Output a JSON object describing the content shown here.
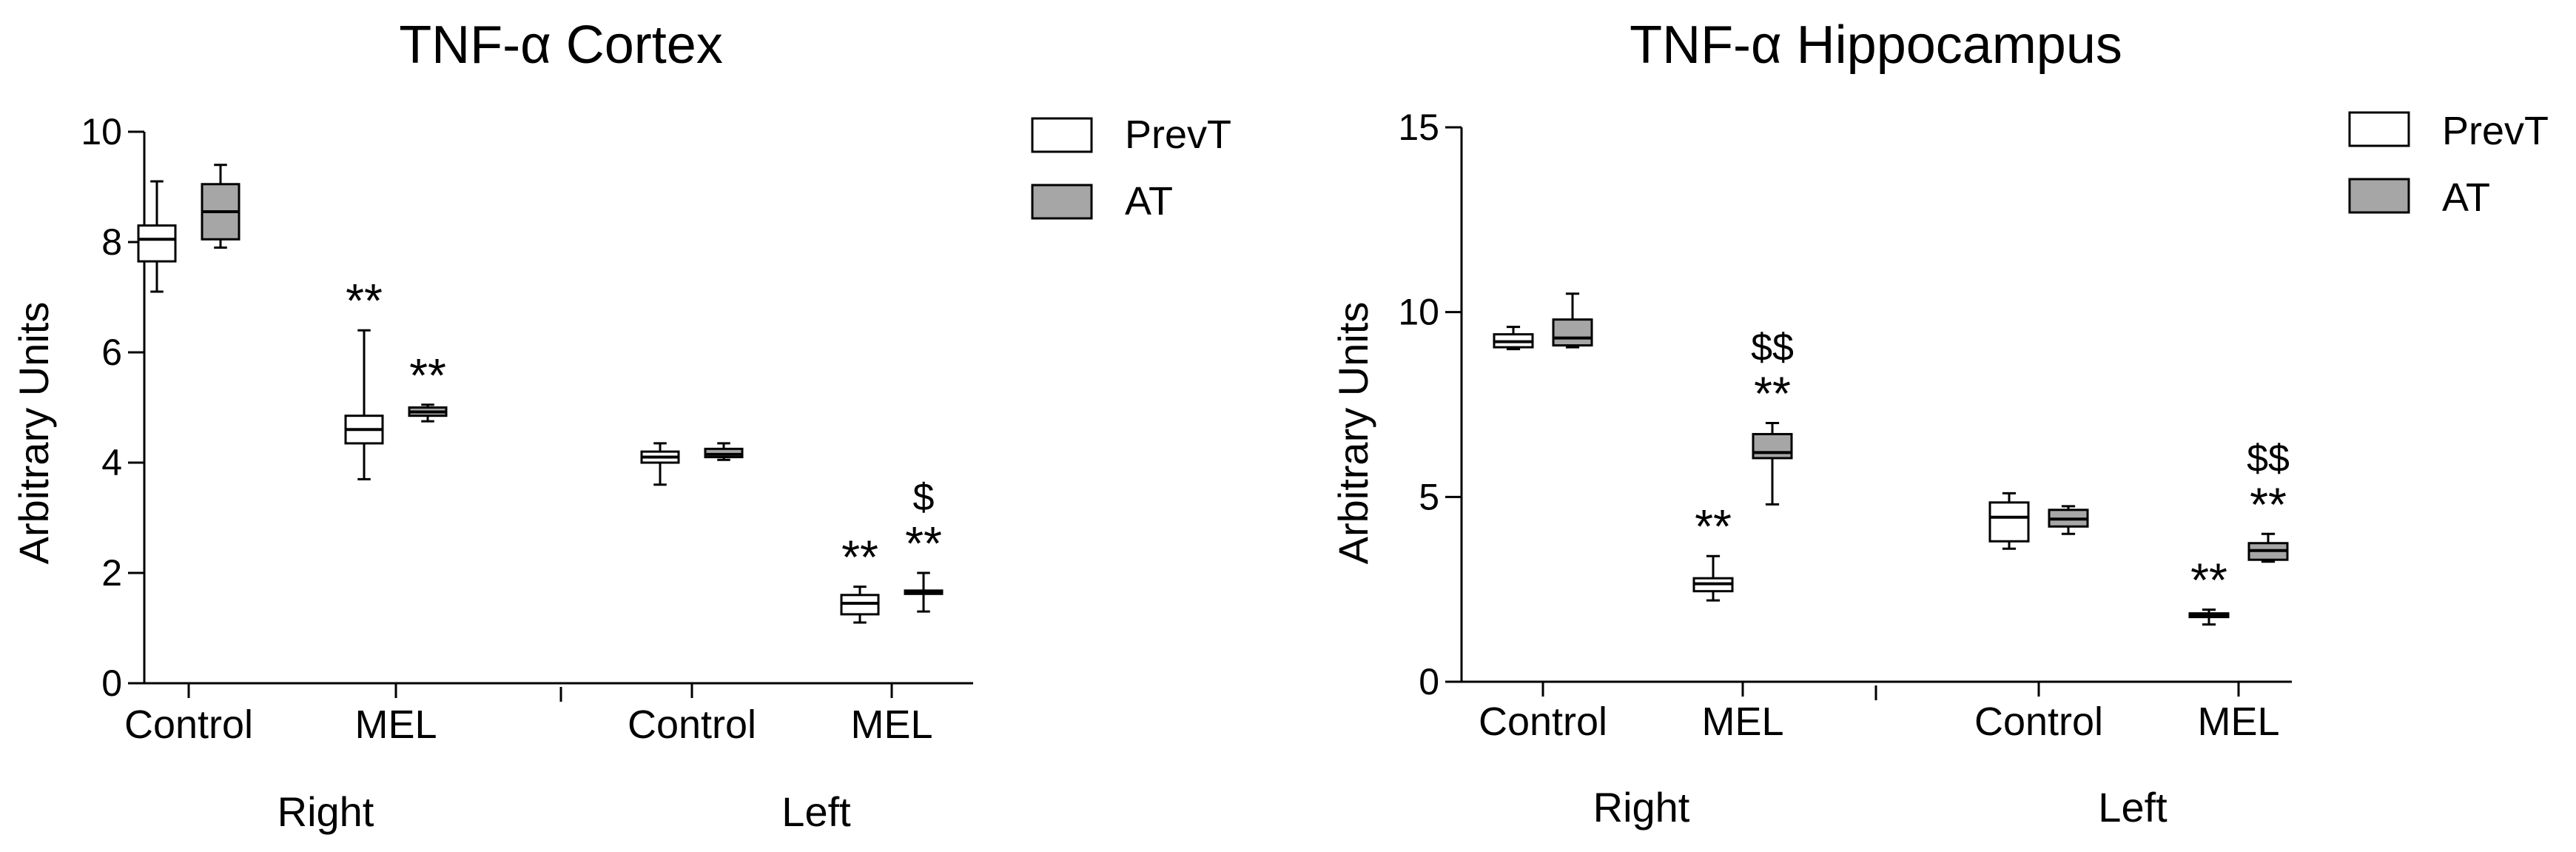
{
  "colors": {
    "PrevT": "#ffffff",
    "AT": "#a6a6a6",
    "stroke": "#000000"
  },
  "chart_data": [
    {
      "type": "boxplot",
      "title": "TNF-α Cortex",
      "ylabel": "Arbitrary Units",
      "ylim": [
        0,
        10
      ],
      "yticks": [
        0,
        2,
        4,
        6,
        8,
        10
      ],
      "yticklabels": [
        "0",
        "2",
        "4",
        "6",
        "8",
        "10"
      ],
      "groups": [
        "Right",
        "Left"
      ],
      "categories": [
        "Control",
        "MEL",
        "Control",
        "MEL"
      ],
      "legend": {
        "position": "top-right",
        "entries": [
          "PrevT",
          "AT"
        ]
      },
      "series": [
        {
          "name": "PrevT",
          "boxes": [
            {
              "min": 7.1,
              "q1": 7.65,
              "median": 8.05,
              "q3": 8.3,
              "max": 9.1,
              "label": ""
            },
            {
              "min": 3.7,
              "q1": 4.35,
              "median": 4.6,
              "q3": 4.85,
              "max": 6.4,
              "label": "**"
            },
            {
              "min": 3.6,
              "q1": 4.0,
              "median": 4.1,
              "q3": 4.2,
              "max": 4.35,
              "label": ""
            },
            {
              "min": 1.1,
              "q1": 1.25,
              "median": 1.45,
              "q3": 1.6,
              "max": 1.75,
              "label": "**"
            }
          ]
        },
        {
          "name": "AT",
          "boxes": [
            {
              "min": 7.9,
              "q1": 8.05,
              "median": 8.55,
              "q3": 9.05,
              "max": 9.4,
              "label": ""
            },
            {
              "min": 4.75,
              "q1": 4.85,
              "median": 4.92,
              "q3": 5.0,
              "max": 5.05,
              "label": "**"
            },
            {
              "min": 4.05,
              "q1": 4.1,
              "median": 4.15,
              "q3": 4.25,
              "max": 4.35,
              "label": ""
            },
            {
              "min": 1.3,
              "q1": 1.62,
              "median": 1.65,
              "q3": 1.68,
              "max": 2.0,
              "label": "**",
              "label2": "$"
            }
          ]
        }
      ]
    },
    {
      "type": "boxplot",
      "title": "TNF-α Hippocampus",
      "ylabel": "Arbitrary Units",
      "ylim": [
        0,
        15
      ],
      "yticks": [
        0,
        5,
        10,
        15
      ],
      "yticklabels": [
        "0",
        "5",
        "10",
        "15"
      ],
      "groups": [
        "Right",
        "Left"
      ],
      "categories": [
        "Control",
        "MEL",
        "Control",
        "MEL"
      ],
      "legend": {
        "position": "top-right",
        "entries": [
          "PrevT",
          "AT"
        ]
      },
      "series": [
        {
          "name": "PrevT",
          "boxes": [
            {
              "min": 9.0,
              "q1": 9.05,
              "median": 9.2,
              "q3": 9.4,
              "max": 9.6,
              "label": ""
            },
            {
              "min": 2.2,
              "q1": 2.45,
              "median": 2.65,
              "q3": 2.8,
              "max": 3.4,
              "label": "**"
            },
            {
              "min": 3.6,
              "q1": 3.8,
              "median": 4.45,
              "q3": 4.85,
              "max": 5.1,
              "label": ""
            },
            {
              "min": 1.55,
              "q1": 1.75,
              "median": 1.8,
              "q3": 1.85,
              "max": 1.95,
              "label": "**"
            }
          ]
        },
        {
          "name": "AT",
          "boxes": [
            {
              "min": 9.05,
              "q1": 9.1,
              "median": 9.3,
              "q3": 9.8,
              "max": 10.5,
              "label": ""
            },
            {
              "min": 4.8,
              "q1": 6.05,
              "median": 6.2,
              "q3": 6.7,
              "max": 7.0,
              "label": "**",
              "label2": "$$"
            },
            {
              "min": 4.0,
              "q1": 4.2,
              "median": 4.4,
              "q3": 4.65,
              "max": 4.75,
              "label": ""
            },
            {
              "min": 3.25,
              "q1": 3.3,
              "median": 3.55,
              "q3": 3.75,
              "max": 4.0,
              "label": "**",
              "label2": "$$"
            }
          ]
        }
      ]
    }
  ]
}
